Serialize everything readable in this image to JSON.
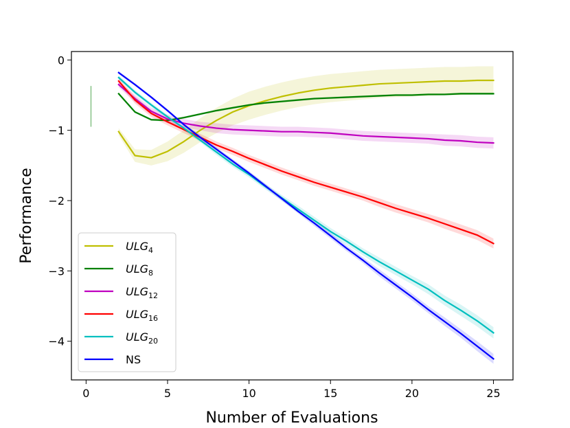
{
  "chart_data": {
    "type": "line",
    "title": "",
    "xlabel": "Number of Evaluations",
    "ylabel": "Performance",
    "xlim": [
      -0.9,
      26.2
    ],
    "ylim": [
      -4.55,
      0.12
    ],
    "xticks": [
      0,
      5,
      10,
      15,
      20,
      25
    ],
    "yticks": [
      0,
      -1,
      -2,
      -3,
      -4
    ],
    "xtick_labels": [
      "0",
      "5",
      "10",
      "15",
      "20",
      "25"
    ],
    "ytick_labels": [
      "0",
      "−1",
      "−2",
      "−3",
      "−4"
    ],
    "grid": false,
    "legend_position": "lower-left",
    "stray_segment": {
      "x": 0.3,
      "y_low": -0.95,
      "y_high": -0.37,
      "color": "#66b266"
    },
    "series": [
      {
        "name": "ULG",
        "subscript": "4",
        "italic": true,
        "color": "#bfbf00",
        "x": [
          2,
          3,
          4,
          5,
          6,
          7,
          8,
          9,
          10,
          11,
          12,
          13,
          14,
          15,
          16,
          17,
          18,
          19,
          20,
          21,
          22,
          23,
          24,
          25
        ],
        "values": [
          -1.02,
          -1.36,
          -1.39,
          -1.3,
          -1.16,
          -1.0,
          -0.86,
          -0.74,
          -0.65,
          -0.58,
          -0.52,
          -0.47,
          -0.43,
          -0.4,
          -0.38,
          -0.36,
          -0.34,
          -0.33,
          -0.32,
          -0.31,
          -0.3,
          -0.3,
          -0.29,
          -0.29
        ],
        "band": [
          0.05,
          0.09,
          0.11,
          0.14,
          0.16,
          0.17,
          0.18,
          0.19,
          0.2,
          0.2,
          0.2,
          0.2,
          0.2,
          0.2,
          0.2,
          0.2,
          0.2,
          0.2,
          0.2,
          0.2,
          0.2,
          0.2,
          0.2,
          0.2
        ]
      },
      {
        "name": "ULG",
        "subscript": "8",
        "italic": true,
        "color": "#008000",
        "x": [
          2,
          3,
          4,
          5,
          6,
          7,
          8,
          9,
          10,
          11,
          12,
          13,
          14,
          15,
          16,
          17,
          18,
          19,
          20,
          21,
          22,
          23,
          24,
          25
        ],
        "values": [
          -0.48,
          -0.74,
          -0.85,
          -0.86,
          -0.82,
          -0.77,
          -0.72,
          -0.68,
          -0.64,
          -0.61,
          -0.59,
          -0.57,
          -0.55,
          -0.54,
          -0.53,
          -0.52,
          -0.51,
          -0.5,
          -0.5,
          -0.49,
          -0.49,
          -0.48,
          -0.48,
          -0.48
        ],
        "band": [
          0.01,
          0.015,
          0.015,
          0.015,
          0.015,
          0.015,
          0.015,
          0.015,
          0.015,
          0.015,
          0.015,
          0.015,
          0.015,
          0.015,
          0.015,
          0.015,
          0.015,
          0.015,
          0.015,
          0.015,
          0.015,
          0.015,
          0.015,
          0.015
        ]
      },
      {
        "name": "ULG",
        "subscript": "12",
        "italic": true,
        "color": "#bf00bf",
        "x": [
          2,
          3,
          4,
          5,
          6,
          7,
          8,
          9,
          10,
          11,
          12,
          13,
          14,
          15,
          16,
          17,
          18,
          19,
          20,
          21,
          22,
          23,
          24,
          25
        ],
        "values": [
          -0.35,
          -0.55,
          -0.73,
          -0.84,
          -0.9,
          -0.94,
          -0.97,
          -0.99,
          -1.0,
          -1.01,
          -1.02,
          -1.02,
          -1.03,
          -1.04,
          -1.06,
          -1.08,
          -1.09,
          -1.1,
          -1.11,
          -1.12,
          -1.14,
          -1.15,
          -1.17,
          -1.18
        ],
        "band": [
          0.04,
          0.05,
          0.05,
          0.06,
          0.06,
          0.06,
          0.07,
          0.07,
          0.07,
          0.07,
          0.07,
          0.07,
          0.07,
          0.07,
          0.07,
          0.07,
          0.07,
          0.07,
          0.07,
          0.07,
          0.08,
          0.08,
          0.08,
          0.08
        ]
      },
      {
        "name": "ULG",
        "subscript": "16",
        "italic": true,
        "color": "#ff0000",
        "x": [
          2,
          3,
          4,
          5,
          6,
          7,
          8,
          9,
          10,
          11,
          12,
          13,
          14,
          15,
          16,
          17,
          18,
          19,
          20,
          21,
          22,
          23,
          24,
          25
        ],
        "values": [
          -0.3,
          -0.57,
          -0.76,
          -0.88,
          -0.99,
          -1.1,
          -1.21,
          -1.3,
          -1.4,
          -1.49,
          -1.58,
          -1.66,
          -1.74,
          -1.81,
          -1.88,
          -1.95,
          -2.03,
          -2.11,
          -2.18,
          -2.25,
          -2.33,
          -2.41,
          -2.49,
          -2.61
        ],
        "band": [
          0.04,
          0.05,
          0.05,
          0.05,
          0.05,
          0.05,
          0.05,
          0.05,
          0.05,
          0.05,
          0.05,
          0.05,
          0.05,
          0.05,
          0.05,
          0.05,
          0.06,
          0.06,
          0.06,
          0.06,
          0.07,
          0.07,
          0.07,
          0.07
        ]
      },
      {
        "name": "ULG",
        "subscript": "20",
        "italic": true,
        "color": "#00bfbf",
        "x": [
          2,
          3,
          4,
          5,
          6,
          7,
          8,
          9,
          10,
          11,
          12,
          13,
          14,
          15,
          16,
          17,
          18,
          19,
          20,
          21,
          22,
          23,
          24,
          25
        ],
        "values": [
          -0.25,
          -0.46,
          -0.64,
          -0.81,
          -0.97,
          -1.14,
          -1.31,
          -1.48,
          -1.63,
          -1.8,
          -1.96,
          -2.12,
          -2.28,
          -2.44,
          -2.58,
          -2.73,
          -2.87,
          -3.0,
          -3.13,
          -3.26,
          -3.42,
          -3.56,
          -3.71,
          -3.88
        ],
        "band": [
          0.03,
          0.03,
          0.03,
          0.03,
          0.03,
          0.03,
          0.04,
          0.04,
          0.04,
          0.04,
          0.04,
          0.05,
          0.05,
          0.05,
          0.05,
          0.05,
          0.06,
          0.06,
          0.06,
          0.07,
          0.07,
          0.08,
          0.08,
          0.08
        ]
      },
      {
        "name": "NS",
        "subscript": "",
        "italic": false,
        "color": "#0000ff",
        "x": [
          2,
          3,
          4,
          5,
          6,
          7,
          8,
          9,
          10,
          11,
          12,
          13,
          14,
          15,
          16,
          17,
          18,
          19,
          20,
          21,
          22,
          23,
          24,
          25
        ],
        "values": [
          -0.18,
          -0.35,
          -0.53,
          -0.72,
          -0.92,
          -1.1,
          -1.27,
          -1.44,
          -1.61,
          -1.79,
          -1.97,
          -2.15,
          -2.32,
          -2.5,
          -2.68,
          -2.85,
          -3.03,
          -3.2,
          -3.37,
          -3.55,
          -3.72,
          -3.89,
          -4.07,
          -4.25
        ],
        "band": [
          0.02,
          0.02,
          0.02,
          0.02,
          0.02,
          0.03,
          0.03,
          0.03,
          0.03,
          0.03,
          0.03,
          0.03,
          0.04,
          0.04,
          0.04,
          0.04,
          0.05,
          0.05,
          0.05,
          0.05,
          0.06,
          0.06,
          0.07,
          0.07
        ]
      }
    ]
  }
}
